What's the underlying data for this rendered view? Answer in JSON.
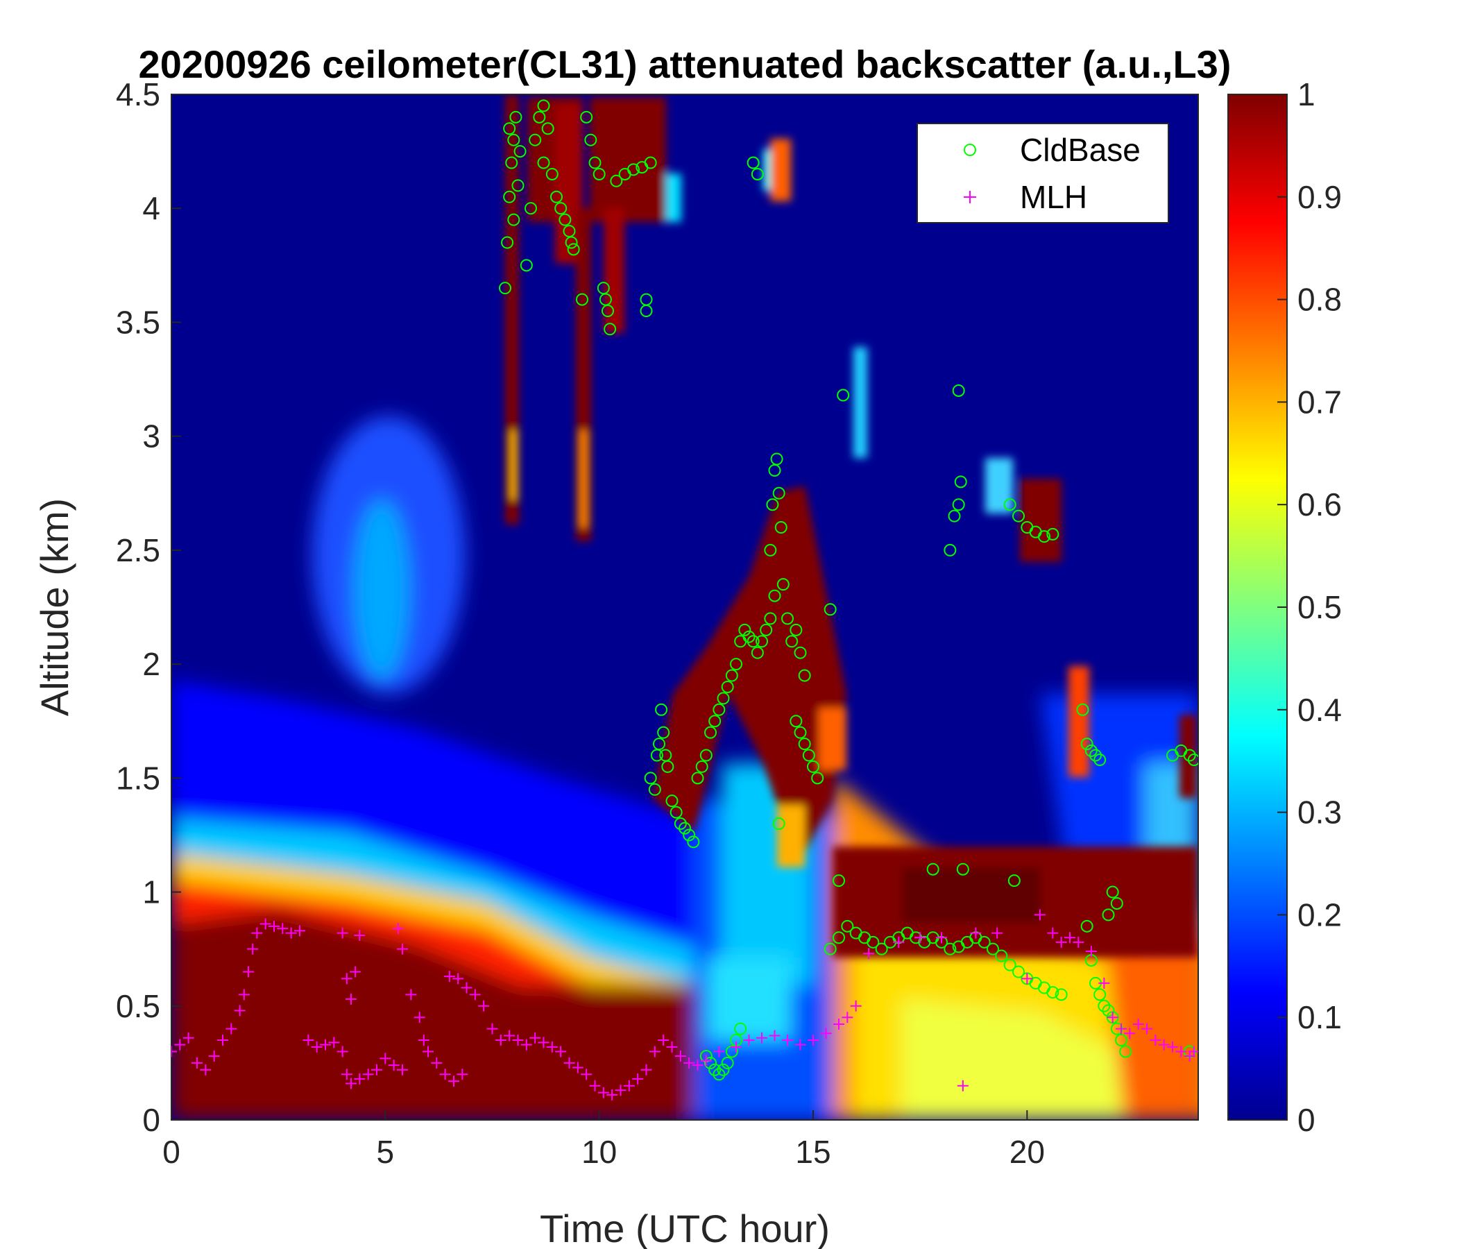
{
  "chart_data": {
    "type": "heatmap",
    "title": "20200926 ceilometer(CL31) attenuated backscatter (a.u.,L3)",
    "xlabel": "Time (UTC hour)",
    "ylabel": "Altitude (km)",
    "xlim": [
      0,
      24
    ],
    "ylim": [
      0,
      4.5
    ],
    "x_ticks": [
      "0",
      "5",
      "10",
      "15",
      "20"
    ],
    "y_ticks": [
      "0",
      "0.5",
      "1",
      "1.5",
      "2",
      "2.5",
      "3",
      "3.5",
      "4",
      "4.5"
    ],
    "colorbar": {
      "ticks": [
        "0",
        "0.1",
        "0.2",
        "0.3",
        "0.4",
        "0.5",
        "0.6",
        "0.7",
        "0.8",
        "0.9",
        "1"
      ],
      "colormap": "jet",
      "lim": [
        0,
        1
      ]
    },
    "legend": {
      "position": "top-right",
      "entries": [
        {
          "name": "CldBase",
          "marker": "circle",
          "color": "#00ff00"
        },
        {
          "name": "MLH",
          "marker": "plus",
          "color": "#ff00ff"
        }
      ]
    },
    "series": [
      {
        "name": "CldBase",
        "marker": "circle",
        "color": "#00ff00",
        "points": [
          [
            7.8,
            3.65
          ],
          [
            7.85,
            3.85
          ],
          [
            7.9,
            4.05
          ],
          [
            7.95,
            4.2
          ],
          [
            8.0,
            4.3
          ],
          [
            8.05,
            4.4
          ],
          [
            8.0,
            3.95
          ],
          [
            8.1,
            4.1
          ],
          [
            7.9,
            4.35
          ],
          [
            8.15,
            4.25
          ],
          [
            8.3,
            3.75
          ],
          [
            8.4,
            4.0
          ],
          [
            8.5,
            4.3
          ],
          [
            8.6,
            4.4
          ],
          [
            8.7,
            4.45
          ],
          [
            8.8,
            4.35
          ],
          [
            8.7,
            4.2
          ],
          [
            8.9,
            4.15
          ],
          [
            9.0,
            4.05
          ],
          [
            9.1,
            4.0
          ],
          [
            9.2,
            3.95
          ],
          [
            9.3,
            3.9
          ],
          [
            9.35,
            3.85
          ],
          [
            9.4,
            3.82
          ],
          [
            9.6,
            3.6
          ],
          [
            9.7,
            4.4
          ],
          [
            9.8,
            4.3
          ],
          [
            9.9,
            4.2
          ],
          [
            10.0,
            4.15
          ],
          [
            10.1,
            3.65
          ],
          [
            10.15,
            3.6
          ],
          [
            10.2,
            3.55
          ],
          [
            10.25,
            3.47
          ],
          [
            10.4,
            4.12
          ],
          [
            10.6,
            4.15
          ],
          [
            10.8,
            4.17
          ],
          [
            11.0,
            4.18
          ],
          [
            11.2,
            4.2
          ],
          [
            11.1,
            3.55
          ],
          [
            11.1,
            3.6
          ],
          [
            11.2,
            1.5
          ],
          [
            11.3,
            1.45
          ],
          [
            11.35,
            1.6
          ],
          [
            11.4,
            1.65
          ],
          [
            11.5,
            1.7
          ],
          [
            11.45,
            1.8
          ],
          [
            11.55,
            1.6
          ],
          [
            11.6,
            1.55
          ],
          [
            11.7,
            1.4
          ],
          [
            11.8,
            1.35
          ],
          [
            11.9,
            1.3
          ],
          [
            12.0,
            1.28
          ],
          [
            12.1,
            1.25
          ],
          [
            12.2,
            1.22
          ],
          [
            12.3,
            1.5
          ],
          [
            12.4,
            1.55
          ],
          [
            12.5,
            1.6
          ],
          [
            12.6,
            1.7
          ],
          [
            12.7,
            1.75
          ],
          [
            12.8,
            1.8
          ],
          [
            12.9,
            1.85
          ],
          [
            13.0,
            1.9
          ],
          [
            13.1,
            1.95
          ],
          [
            13.2,
            2.0
          ],
          [
            13.3,
            2.1
          ],
          [
            13.4,
            2.15
          ],
          [
            13.5,
            2.12
          ],
          [
            13.6,
            2.1
          ],
          [
            13.7,
            2.05
          ],
          [
            13.8,
            2.1
          ],
          [
            13.9,
            2.15
          ],
          [
            14.0,
            2.2
          ],
          [
            14.1,
            2.3
          ],
          [
            14.0,
            2.5
          ],
          [
            14.05,
            2.7
          ],
          [
            14.1,
            2.85
          ],
          [
            14.15,
            2.9
          ],
          [
            14.2,
            2.75
          ],
          [
            14.25,
            2.6
          ],
          [
            14.3,
            2.35
          ],
          [
            14.4,
            2.2
          ],
          [
            14.5,
            2.1
          ],
          [
            14.6,
            2.15
          ],
          [
            14.7,
            2.05
          ],
          [
            14.8,
            1.95
          ],
          [
            14.6,
            1.75
          ],
          [
            14.7,
            1.7
          ],
          [
            14.8,
            1.65
          ],
          [
            14.9,
            1.6
          ],
          [
            15.0,
            1.55
          ],
          [
            15.1,
            1.5
          ],
          [
            14.2,
            1.3
          ],
          [
            13.6,
            4.2
          ],
          [
            13.7,
            4.15
          ],
          [
            15.4,
            2.24
          ],
          [
            15.7,
            3.18
          ],
          [
            12.5,
            0.28
          ],
          [
            12.6,
            0.25
          ],
          [
            12.7,
            0.22
          ],
          [
            12.8,
            0.2
          ],
          [
            12.9,
            0.22
          ],
          [
            13.0,
            0.25
          ],
          [
            13.1,
            0.3
          ],
          [
            13.2,
            0.35
          ],
          [
            13.3,
            0.4
          ],
          [
            15.4,
            0.75
          ],
          [
            15.6,
            0.8
          ],
          [
            15.8,
            0.85
          ],
          [
            16.0,
            0.82
          ],
          [
            16.2,
            0.8
          ],
          [
            16.4,
            0.78
          ],
          [
            16.6,
            0.75
          ],
          [
            16.8,
            0.78
          ],
          [
            17.0,
            0.8
          ],
          [
            17.2,
            0.82
          ],
          [
            17.4,
            0.8
          ],
          [
            17.6,
            0.78
          ],
          [
            17.8,
            0.8
          ],
          [
            18.0,
            0.78
          ],
          [
            18.2,
            0.75
          ],
          [
            18.4,
            0.76
          ],
          [
            18.6,
            0.78
          ],
          [
            18.8,
            0.8
          ],
          [
            19.0,
            0.78
          ],
          [
            19.2,
            0.75
          ],
          [
            19.4,
            0.72
          ],
          [
            19.6,
            0.68
          ],
          [
            19.8,
            0.65
          ],
          [
            20.0,
            0.62
          ],
          [
            20.2,
            0.6
          ],
          [
            20.4,
            0.58
          ],
          [
            20.6,
            0.56
          ],
          [
            20.8,
            0.55
          ],
          [
            15.6,
            1.05
          ],
          [
            17.8,
            1.1
          ],
          [
            18.5,
            1.1
          ],
          [
            19.7,
            1.05
          ],
          [
            18.2,
            2.5
          ],
          [
            18.3,
            2.65
          ],
          [
            18.4,
            2.7
          ],
          [
            18.45,
            2.8
          ],
          [
            18.4,
            3.2
          ],
          [
            19.6,
            2.7
          ],
          [
            19.8,
            2.65
          ],
          [
            20.0,
            2.6
          ],
          [
            20.2,
            2.58
          ],
          [
            20.4,
            2.56
          ],
          [
            20.6,
            2.57
          ],
          [
            21.3,
            1.8
          ],
          [
            21.4,
            1.65
          ],
          [
            21.5,
            1.62
          ],
          [
            21.6,
            1.6
          ],
          [
            21.7,
            1.58
          ],
          [
            21.4,
            0.85
          ],
          [
            21.5,
            0.7
          ],
          [
            21.6,
            0.6
          ],
          [
            21.7,
            0.55
          ],
          [
            21.8,
            0.5
          ],
          [
            21.9,
            0.48
          ],
          [
            22.0,
            0.45
          ],
          [
            22.1,
            0.4
          ],
          [
            22.2,
            0.35
          ],
          [
            22.3,
            0.3
          ],
          [
            21.9,
            0.9
          ],
          [
            22.0,
            1.0
          ],
          [
            22.1,
            0.95
          ],
          [
            23.4,
            1.6
          ],
          [
            23.6,
            1.62
          ],
          [
            23.8,
            1.6
          ],
          [
            23.9,
            1.58
          ],
          [
            23.8,
            0.3
          ]
        ]
      },
      {
        "name": "MLH",
        "marker": "plus",
        "color": "#ff00ff",
        "points": [
          [
            0.0,
            0.3
          ],
          [
            0.2,
            0.33
          ],
          [
            0.4,
            0.36
          ],
          [
            0.6,
            0.25
          ],
          [
            0.8,
            0.22
          ],
          [
            1.0,
            0.28
          ],
          [
            1.2,
            0.35
          ],
          [
            1.4,
            0.4
          ],
          [
            1.6,
            0.48
          ],
          [
            1.7,
            0.55
          ],
          [
            1.8,
            0.65
          ],
          [
            1.9,
            0.75
          ],
          [
            2.0,
            0.82
          ],
          [
            2.2,
            0.86
          ],
          [
            2.4,
            0.85
          ],
          [
            2.6,
            0.84
          ],
          [
            2.8,
            0.82
          ],
          [
            3.0,
            0.83
          ],
          [
            3.2,
            0.35
          ],
          [
            3.4,
            0.32
          ],
          [
            3.6,
            0.33
          ],
          [
            3.8,
            0.34
          ],
          [
            4.0,
            0.3
          ],
          [
            4.1,
            0.2
          ],
          [
            4.2,
            0.16
          ],
          [
            4.4,
            0.18
          ],
          [
            4.6,
            0.2
          ],
          [
            4.8,
            0.22
          ],
          [
            5.0,
            0.27
          ],
          [
            5.2,
            0.24
          ],
          [
            5.4,
            0.22
          ],
          [
            4.1,
            0.62
          ],
          [
            4.2,
            0.53
          ],
          [
            4.3,
            0.65
          ],
          [
            4.0,
            0.82
          ],
          [
            4.4,
            0.81
          ],
          [
            5.3,
            0.84
          ],
          [
            5.4,
            0.75
          ],
          [
            5.6,
            0.55
          ],
          [
            5.8,
            0.45
          ],
          [
            5.9,
            0.35
          ],
          [
            6.0,
            0.3
          ],
          [
            6.2,
            0.25
          ],
          [
            6.4,
            0.2
          ],
          [
            6.6,
            0.17
          ],
          [
            6.8,
            0.2
          ],
          [
            6.5,
            0.63
          ],
          [
            6.7,
            0.62
          ],
          [
            6.9,
            0.58
          ],
          [
            7.1,
            0.55
          ],
          [
            7.3,
            0.5
          ],
          [
            7.5,
            0.4
          ],
          [
            7.7,
            0.35
          ],
          [
            7.9,
            0.37
          ],
          [
            8.1,
            0.35
          ],
          [
            8.3,
            0.33
          ],
          [
            8.5,
            0.36
          ],
          [
            8.7,
            0.34
          ],
          [
            8.9,
            0.32
          ],
          [
            9.1,
            0.3
          ],
          [
            9.3,
            0.25
          ],
          [
            9.5,
            0.23
          ],
          [
            9.7,
            0.2
          ],
          [
            9.9,
            0.15
          ],
          [
            10.1,
            0.12
          ],
          [
            10.3,
            0.11
          ],
          [
            10.5,
            0.13
          ],
          [
            10.7,
            0.15
          ],
          [
            10.9,
            0.18
          ],
          [
            11.1,
            0.22
          ],
          [
            11.3,
            0.3
          ],
          [
            11.5,
            0.35
          ],
          [
            11.7,
            0.32
          ],
          [
            11.9,
            0.28
          ],
          [
            12.1,
            0.25
          ],
          [
            12.3,
            0.24
          ],
          [
            12.5,
            0.26
          ],
          [
            12.8,
            0.3
          ],
          [
            13.2,
            0.32
          ],
          [
            13.5,
            0.35
          ],
          [
            13.8,
            0.36
          ],
          [
            14.1,
            0.37
          ],
          [
            14.4,
            0.35
          ],
          [
            14.7,
            0.33
          ],
          [
            15.0,
            0.35
          ],
          [
            15.3,
            0.38
          ],
          [
            15.6,
            0.42
          ],
          [
            15.8,
            0.45
          ],
          [
            16.0,
            0.5
          ],
          [
            16.3,
            0.73
          ],
          [
            17.0,
            0.78
          ],
          [
            17.5,
            0.8
          ],
          [
            18.0,
            0.8
          ],
          [
            18.5,
            0.15
          ],
          [
            18.8,
            0.82
          ],
          [
            19.3,
            0.82
          ],
          [
            20.0,
            0.62
          ],
          [
            20.3,
            0.9
          ],
          [
            20.6,
            0.82
          ],
          [
            20.8,
            0.78
          ],
          [
            21.0,
            0.8
          ],
          [
            21.2,
            0.78
          ],
          [
            21.5,
            0.74
          ],
          [
            21.8,
            0.6
          ],
          [
            22.0,
            0.45
          ],
          [
            22.2,
            0.4
          ],
          [
            22.4,
            0.38
          ],
          [
            22.6,
            0.42
          ],
          [
            22.8,
            0.4
          ],
          [
            23.0,
            0.35
          ],
          [
            23.2,
            0.33
          ],
          [
            23.4,
            0.32
          ],
          [
            23.6,
            0.3
          ],
          [
            23.8,
            0.28
          ],
          [
            23.9,
            0.3
          ]
        ]
      }
    ]
  }
}
